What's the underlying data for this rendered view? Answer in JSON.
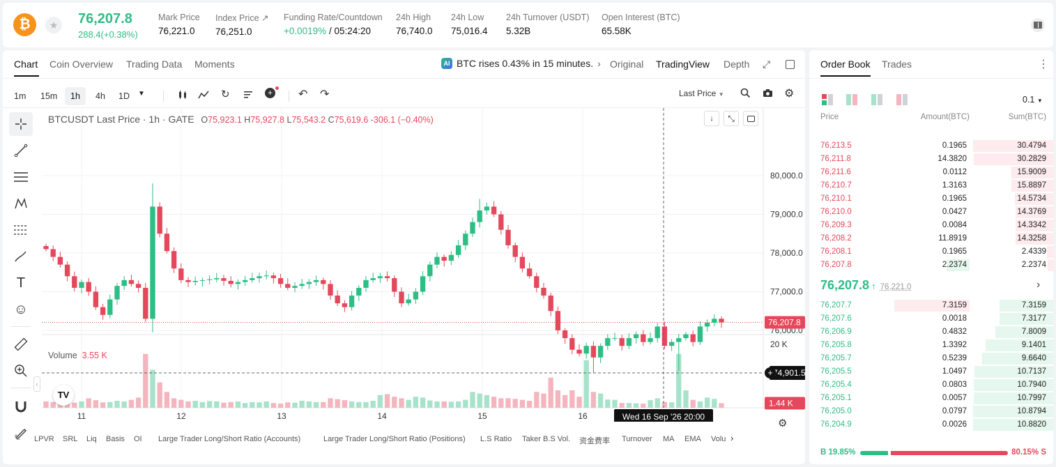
{
  "header": {
    "coin_icon": "bitcoin-icon",
    "star_icon": "star-icon",
    "last_price": "76,207.8",
    "change": "288.4(+0.38%)",
    "stats": [
      {
        "label": "Mark Price",
        "value": "76,221.0"
      },
      {
        "label": "Index Price",
        "value": "76,251.0"
      },
      {
        "label": "Funding Rate/Countdown",
        "value_rate": "+0.0019%",
        "value_countdown": "/ 05:24:20"
      },
      {
        "label": "24h High",
        "value": "76,740.0"
      },
      {
        "label": "24h Low",
        "value": "75,016.4"
      },
      {
        "label": "24h Turnover (USDT)",
        "value": "5.32B"
      },
      {
        "label": "Open Interest (BTC)",
        "value": "65.58K"
      }
    ]
  },
  "chart_panel": {
    "tabs": [
      "Chart",
      "Coin Overview",
      "Trading Data",
      "Moments"
    ],
    "news": "BTC rises 0.43% in 15 minutes.",
    "view_tabs": [
      "Original",
      "TradingView",
      "Depth"
    ],
    "intervals": [
      "1m",
      "15m",
      "1h",
      "4h",
      "1D"
    ],
    "last_price_select": "Last Price",
    "legend": {
      "symbol": "BTCUSDT Last Price · 1h · GATE",
      "o": "75,923.1",
      "h": "75,927.8",
      "l": "75,543.2",
      "c": "75,619.6",
      "chg": "-306.1 (−0.40%)"
    },
    "volume_label": "Volume",
    "volume_value": "3.55 K",
    "crosshair_time": "Wed 16 Sep '26   20:00",
    "crosshair_price": "74,901.5",
    "last_price_tag": "76,207.8",
    "volume_tag": "1.44 K",
    "indicators": [
      "LPVR",
      "SRL",
      "Liq",
      "Basis",
      "OI",
      "Large Trader Long/Short Ratio (Accounts)",
      "Large Trader Long/Short Ratio (Positions)",
      "L.S Ratio",
      "Taker B.S Vol.",
      "资金费率",
      "Turnover",
      "MA",
      "EMA",
      "Volu"
    ]
  },
  "chart_data": {
    "type": "candlestick",
    "x_ticks": [
      "11",
      "12",
      "13",
      "14",
      "15",
      "16"
    ],
    "y_ticks": [
      "80,000.0",
      "79,000.0",
      "78,000.0",
      "77,000.0",
      "76,000.0"
    ],
    "ylim": [
      74000,
      80200
    ],
    "vol_ticks": [
      "20 K",
      "10 K"
    ],
    "vol_lim": [
      0,
      22000
    ],
    "last_price": 76207.8,
    "crosshair_price": 74901.5,
    "close_path": [
      78100,
      77900,
      77700,
      77400,
      77100,
      77250,
      77000,
      76600,
      76400,
      76800,
      77150,
      77300,
      77200,
      77100,
      76300,
      79200,
      78500,
      78050,
      77600,
      77300,
      77250,
      77280,
      77300,
      77320,
      77350,
      77280,
      77200,
      77250,
      77300,
      77350,
      77400,
      77420,
      77350,
      77200,
      77100,
      77150,
      77200,
      77250,
      77300,
      77200,
      76900,
      76700,
      76600,
      76900,
      77100,
      77300,
      77350,
      77400,
      77350,
      77000,
      76700,
      76800,
      77000,
      77400,
      77700,
      77900,
      77800,
      77950,
      78200,
      78500,
      78800,
      79100,
      79200,
      79000,
      78600,
      78200,
      77900,
      77600,
      77400,
      77100,
      76900,
      76500,
      76000,
      75800,
      75500,
      75400,
      75600,
      75300,
      75600,
      75800,
      75800,
      75600,
      75800,
      75900,
      75700,
      75800,
      76100,
      75600,
      75700,
      75800,
      75900,
      75700,
      76100,
      76200,
      76300,
      76207.8
    ],
    "volume_path": [
      2000,
      1800,
      2500,
      1500,
      1600,
      2000,
      3000,
      2400,
      1700,
      1800,
      2200,
      2000,
      2500,
      3200,
      17000,
      12000,
      8000,
      5000,
      3000,
      2500,
      2000,
      2200,
      1800,
      2100,
      2000,
      1600,
      1800,
      2000,
      1500,
      1800,
      1700,
      2000,
      1500,
      1300,
      1700,
      1600,
      2200,
      2000,
      1800,
      1800,
      3000,
      2700,
      2400,
      2000,
      1800,
      1800,
      2200,
      4000,
      4300,
      3500,
      3000,
      2500,
      3500,
      3200,
      2300,
      2000,
      2000,
      1900,
      2000,
      2500,
      5000,
      4500,
      4000,
      3500,
      3000,
      3000,
      2800,
      2500,
      2200,
      5000,
      4500,
      9500,
      5500,
      4000,
      5500,
      3500,
      15000,
      5000,
      4500,
      2600,
      2500,
      1500,
      1500,
      1400,
      1300,
      2400,
      3000,
      1800,
      1700,
      17000,
      5500,
      2500,
      2000,
      3200,
      2800,
      1440
    ]
  },
  "order_book": {
    "tabs": [
      "Order Book",
      "Trades"
    ],
    "precision": "0.1",
    "headers": [
      "Price",
      "Amount(BTC)",
      "Sum(BTC)"
    ],
    "asks": [
      {
        "price": "76,213.5",
        "amount": "0.1965",
        "sum": "30.4794",
        "sum_frac": 1.0,
        "amt_frac": 0
      },
      {
        "price": "76,211.8",
        "amount": "14.3820",
        "sum": "30.2829",
        "sum_frac": 0.99,
        "amt_frac": 0
      },
      {
        "price": "76,211.6",
        "amount": "0.0112",
        "sum": "15.9009",
        "sum_frac": 0.52,
        "amt_frac": 0
      },
      {
        "price": "76,210.7",
        "amount": "1.3163",
        "sum": "15.8897",
        "sum_frac": 0.52,
        "amt_frac": 0
      },
      {
        "price": "76,210.1",
        "amount": "0.1965",
        "sum": "14.5734",
        "sum_frac": 0.48,
        "amt_frac": 0
      },
      {
        "price": "76,210.0",
        "amount": "0.0427",
        "sum": "14.3769",
        "sum_frac": 0.47,
        "amt_frac": 0
      },
      {
        "price": "76,209.3",
        "amount": "0.0084",
        "sum": "14.3342",
        "sum_frac": 0.47,
        "amt_frac": 0
      },
      {
        "price": "76,208.2",
        "amount": "11.8919",
        "sum": "14.3258",
        "sum_frac": 0.47,
        "amt_frac": 0
      },
      {
        "price": "76,208.1",
        "amount": "0.1965",
        "sum": "2.4339",
        "sum_frac": 0.08,
        "amt_frac": 0
      },
      {
        "price": "76,207.8",
        "amount": "2.2374",
        "sum": "2.2374",
        "sum_frac": 0.07,
        "amt_frac": 0.31
      }
    ],
    "mid_price": "76,207.8",
    "mid_mark": "76,221.0",
    "bids": [
      {
        "price": "76,207.7",
        "amount": "7.3159",
        "sum": "7.3159",
        "sum_frac": 0.67,
        "amt_frac": 1.0
      },
      {
        "price": "76,207.6",
        "amount": "0.0018",
        "sum": "7.3177",
        "sum_frac": 0.67,
        "amt_frac": 0
      },
      {
        "price": "76,206.9",
        "amount": "0.4832",
        "sum": "7.8009",
        "sum_frac": 0.72,
        "amt_frac": 0
      },
      {
        "price": "76,205.8",
        "amount": "1.3392",
        "sum": "9.1401",
        "sum_frac": 0.84,
        "amt_frac": 0
      },
      {
        "price": "76,205.7",
        "amount": "0.5239",
        "sum": "9.6640",
        "sum_frac": 0.89,
        "amt_frac": 0
      },
      {
        "price": "76,205.5",
        "amount": "1.0497",
        "sum": "10.7137",
        "sum_frac": 0.98,
        "amt_frac": 0
      },
      {
        "price": "76,205.4",
        "amount": "0.0803",
        "sum": "10.7940",
        "sum_frac": 0.99,
        "amt_frac": 0
      },
      {
        "price": "76,205.1",
        "amount": "0.0057",
        "sum": "10.7997",
        "sum_frac": 0.99,
        "amt_frac": 0
      },
      {
        "price": "76,205.0",
        "amount": "0.0797",
        "sum": "10.8794",
        "sum_frac": 1.0,
        "amt_frac": 0
      },
      {
        "price": "76,204.9",
        "amount": "0.0026",
        "sum": "10.8820",
        "sum_frac": 1.0,
        "amt_frac": 0
      }
    ],
    "buy_ratio": "B 19.85%",
    "sell_ratio": "80.15% S",
    "buy_frac": 0.1985
  },
  "colors": {
    "up": "#2ebd85",
    "down": "#e5475b",
    "up_light": "#e6f7ef",
    "down_light": "#fdebed"
  }
}
